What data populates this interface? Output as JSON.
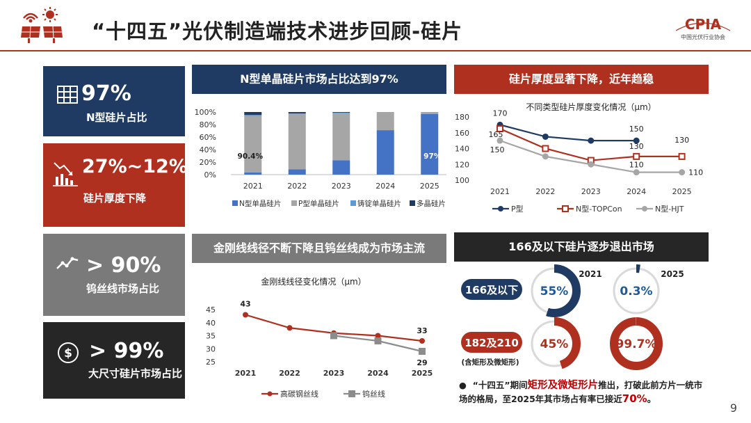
{
  "title": "“十四五”光伏制造端技术进步回顾-硅片",
  "brand": {
    "logo_text": "CPIA",
    "logo_sub": "中国光伏行业协会"
  },
  "page_number": "9",
  "colors": {
    "navy": "#1f3b63",
    "red": "#b0301f",
    "gray": "#7a7a7a",
    "dark": "#262626",
    "blue": "#4472c4",
    "lightgray": "#a6a6a6"
  },
  "kpis": [
    {
      "icon": "table-icon",
      "value": "97%",
      "label": "N型硅片占比"
    },
    {
      "icon": "declining-chart-icon",
      "value": "27%~12%",
      "label": "硅片厚度下降"
    },
    {
      "icon": "trend-line-icon",
      "value": "> 90%",
      "label": "钨丝线市场占比"
    },
    {
      "icon": "dollar-icon",
      "value": "> 99%",
      "label": "大尺寸硅片市场占比"
    }
  ],
  "panels": {
    "share": "N型单晶硅片市场占比达到97%",
    "thickness": "硅片厚度显著下降，近年趋稳",
    "wire": "金刚线线径不断下降且钨丝线成为市场主流",
    "size": "166及以下硅片逐步退出市场"
  },
  "chart_data": [
    {
      "type": "bar",
      "stacked": true,
      "percent": true,
      "categories": [
        "2021",
        "2022",
        "2023",
        "2024",
        "2025"
      ],
      "series": [
        {
          "name": "N型单晶硅片",
          "values": [
            3.5,
            8.4,
            23,
            71,
            97
          ]
        },
        {
          "name": "P型单晶硅片",
          "values": [
            90.4,
            88,
            75,
            29,
            3
          ]
        },
        {
          "name": "铸锭单晶硅片",
          "values": [
            1.5,
            1.5,
            1,
            0,
            0
          ]
        },
        {
          "name": "多晶硅片",
          "values": [
            4.6,
            2.1,
            1,
            0,
            0
          ]
        }
      ],
      "ylim": [
        0,
        100
      ],
      "yticks": [
        "0%",
        "20%",
        "40%",
        "60%",
        "80%",
        "100%"
      ],
      "data_labels": [
        {
          "category": "2021",
          "text": "90.4%"
        },
        {
          "category": "2025",
          "text": "97%"
        }
      ],
      "legend_position": "bottom"
    },
    {
      "type": "line",
      "title": "不同类型硅片厚度变化情况（μm）",
      "x": [
        "2021",
        "2022",
        "2023",
        "2024",
        "2025"
      ],
      "series": [
        {
          "name": "P型",
          "values": [
            170,
            155,
            150,
            150,
            null
          ]
        },
        {
          "name": "N型-TOPCon",
          "values": [
            165,
            140,
            125,
            130,
            130
          ]
        },
        {
          "name": "N型-HJT",
          "values": [
            150,
            130,
            120,
            110,
            110
          ]
        }
      ],
      "ylim": [
        100,
        180
      ],
      "yticks": [
        "100",
        "120",
        "140",
        "160",
        "180"
      ],
      "data_labels": [
        {
          "series": "P型",
          "x": "2021",
          "text": "170"
        },
        {
          "series": "N型-TOPCon",
          "x": "2021",
          "text": "165"
        },
        {
          "series": "N型-HJT",
          "x": "2021",
          "text": "150"
        },
        {
          "series": "P型",
          "x": "2024",
          "text": "150"
        },
        {
          "series": "N型-TOPCon",
          "x": "2024",
          "text": "130"
        },
        {
          "series": "N型-TOPCon",
          "x": "2025",
          "text": "130"
        },
        {
          "series": "N型-HJT",
          "x": "2024",
          "text": "110"
        },
        {
          "series": "N型-HJT",
          "x": "2025",
          "text": "110"
        }
      ],
      "legend_position": "bottom"
    },
    {
      "type": "line",
      "title": "金刚线线径变化情况（μm）",
      "x": [
        "2021",
        "2022",
        "2023",
        "2024",
        "2025"
      ],
      "series": [
        {
          "name": "高碳钢丝线",
          "values": [
            43,
            38,
            36,
            35,
            33
          ]
        },
        {
          "name": "钨丝线",
          "values": [
            null,
            null,
            35,
            33,
            29
          ]
        }
      ],
      "ylim": [
        25,
        45
      ],
      "yticks": [
        "25",
        "30",
        "35",
        "40",
        "45"
      ],
      "data_labels": [
        {
          "series": "高碳钢丝线",
          "x": "2021",
          "text": "43"
        },
        {
          "series": "高碳钢丝线",
          "x": "2025",
          "text": "33"
        },
        {
          "series": "钨丝线",
          "x": "2025",
          "text": "29"
        }
      ],
      "legend_position": "bottom"
    },
    {
      "type": "pie",
      "years": [
        "2021",
        "2025"
      ],
      "rows": [
        {
          "label": "166及以下",
          "values": [
            55,
            0.3
          ],
          "texts": [
            "55%",
            "0.3%"
          ],
          "color": "#1f3b63"
        },
        {
          "label": "182及210",
          "sublabel": "(含矩形及微矩形)",
          "values": [
            45,
            99.7
          ],
          "texts": [
            "45%",
            "99.7%"
          ],
          "color": "#b0301f"
        }
      ]
    }
  ],
  "note": {
    "bullet": "●",
    "pre": "“十四五”期间",
    "highlight": "矩形及微矩形片",
    "mid": "推出，打破此前方片一统市场的格局，至2025年其市场占有率已接近",
    "percent": "70%",
    "end": "。"
  }
}
